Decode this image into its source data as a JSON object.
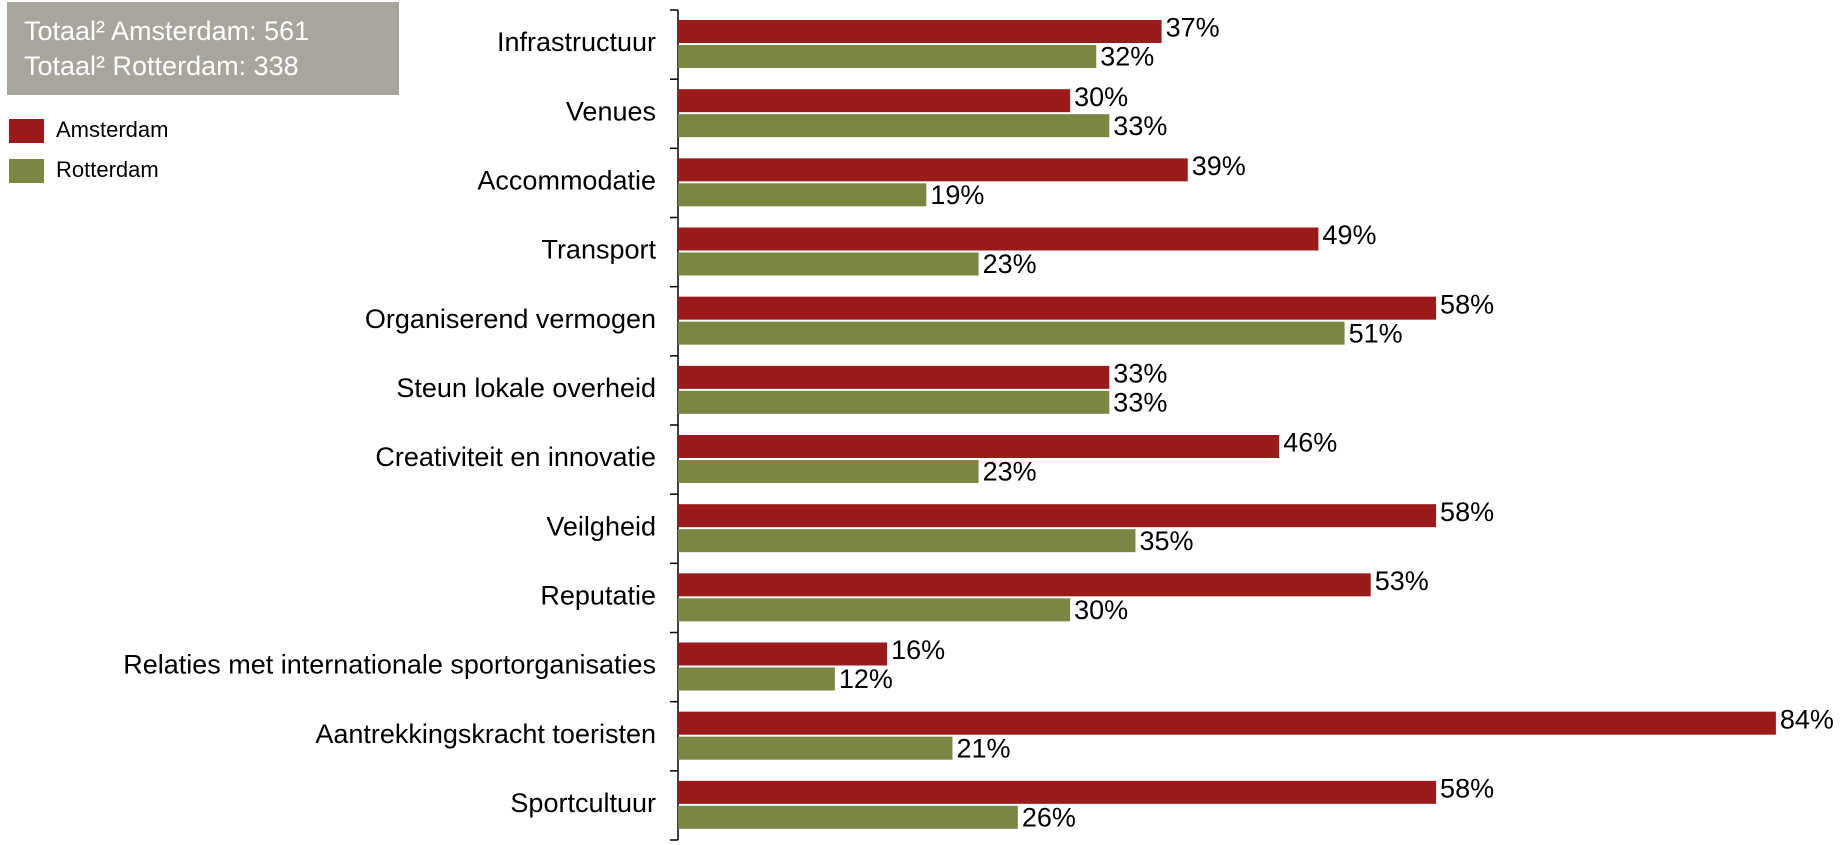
{
  "chart_data": {
    "type": "bar",
    "orientation": "horizontal",
    "annotations": [
      "Totaal² Amsterdam: 561",
      "Totaal² Rotterdam: 338"
    ],
    "categories": [
      "Infrastructuur",
      "Venues",
      "Accommodatie",
      "Transport",
      "Organiserend vermogen",
      "Steun lokale overheid",
      "Creativiteit en innovatie",
      "Veilgheid",
      "Reputatie",
      "Relaties met internationale sportorganisaties",
      "Aantrekkingskracht toeristen",
      "Sportcultuur"
    ],
    "series": [
      {
        "name": "Amsterdam",
        "color": "#9b1a1a",
        "values": [
          37,
          30,
          39,
          49,
          58,
          33,
          46,
          58,
          53,
          16,
          84,
          58
        ],
        "value_labels": [
          "37%",
          "30%",
          "39%",
          "49%",
          "58%",
          "33%",
          "46%",
          "58%",
          "53%",
          "16%",
          "84%",
          "58%"
        ]
      },
      {
        "name": "Rotterdam",
        "color": "#7a8641",
        "values": [
          32,
          33,
          19,
          23,
          51,
          33,
          23,
          35,
          30,
          12,
          21,
          26
        ],
        "value_labels": [
          "32%",
          "33%",
          "19%",
          "23%",
          "51%",
          "33%",
          "23%",
          "35%",
          "30%",
          "12%",
          "21%",
          "26%"
        ]
      }
    ]
  }
}
